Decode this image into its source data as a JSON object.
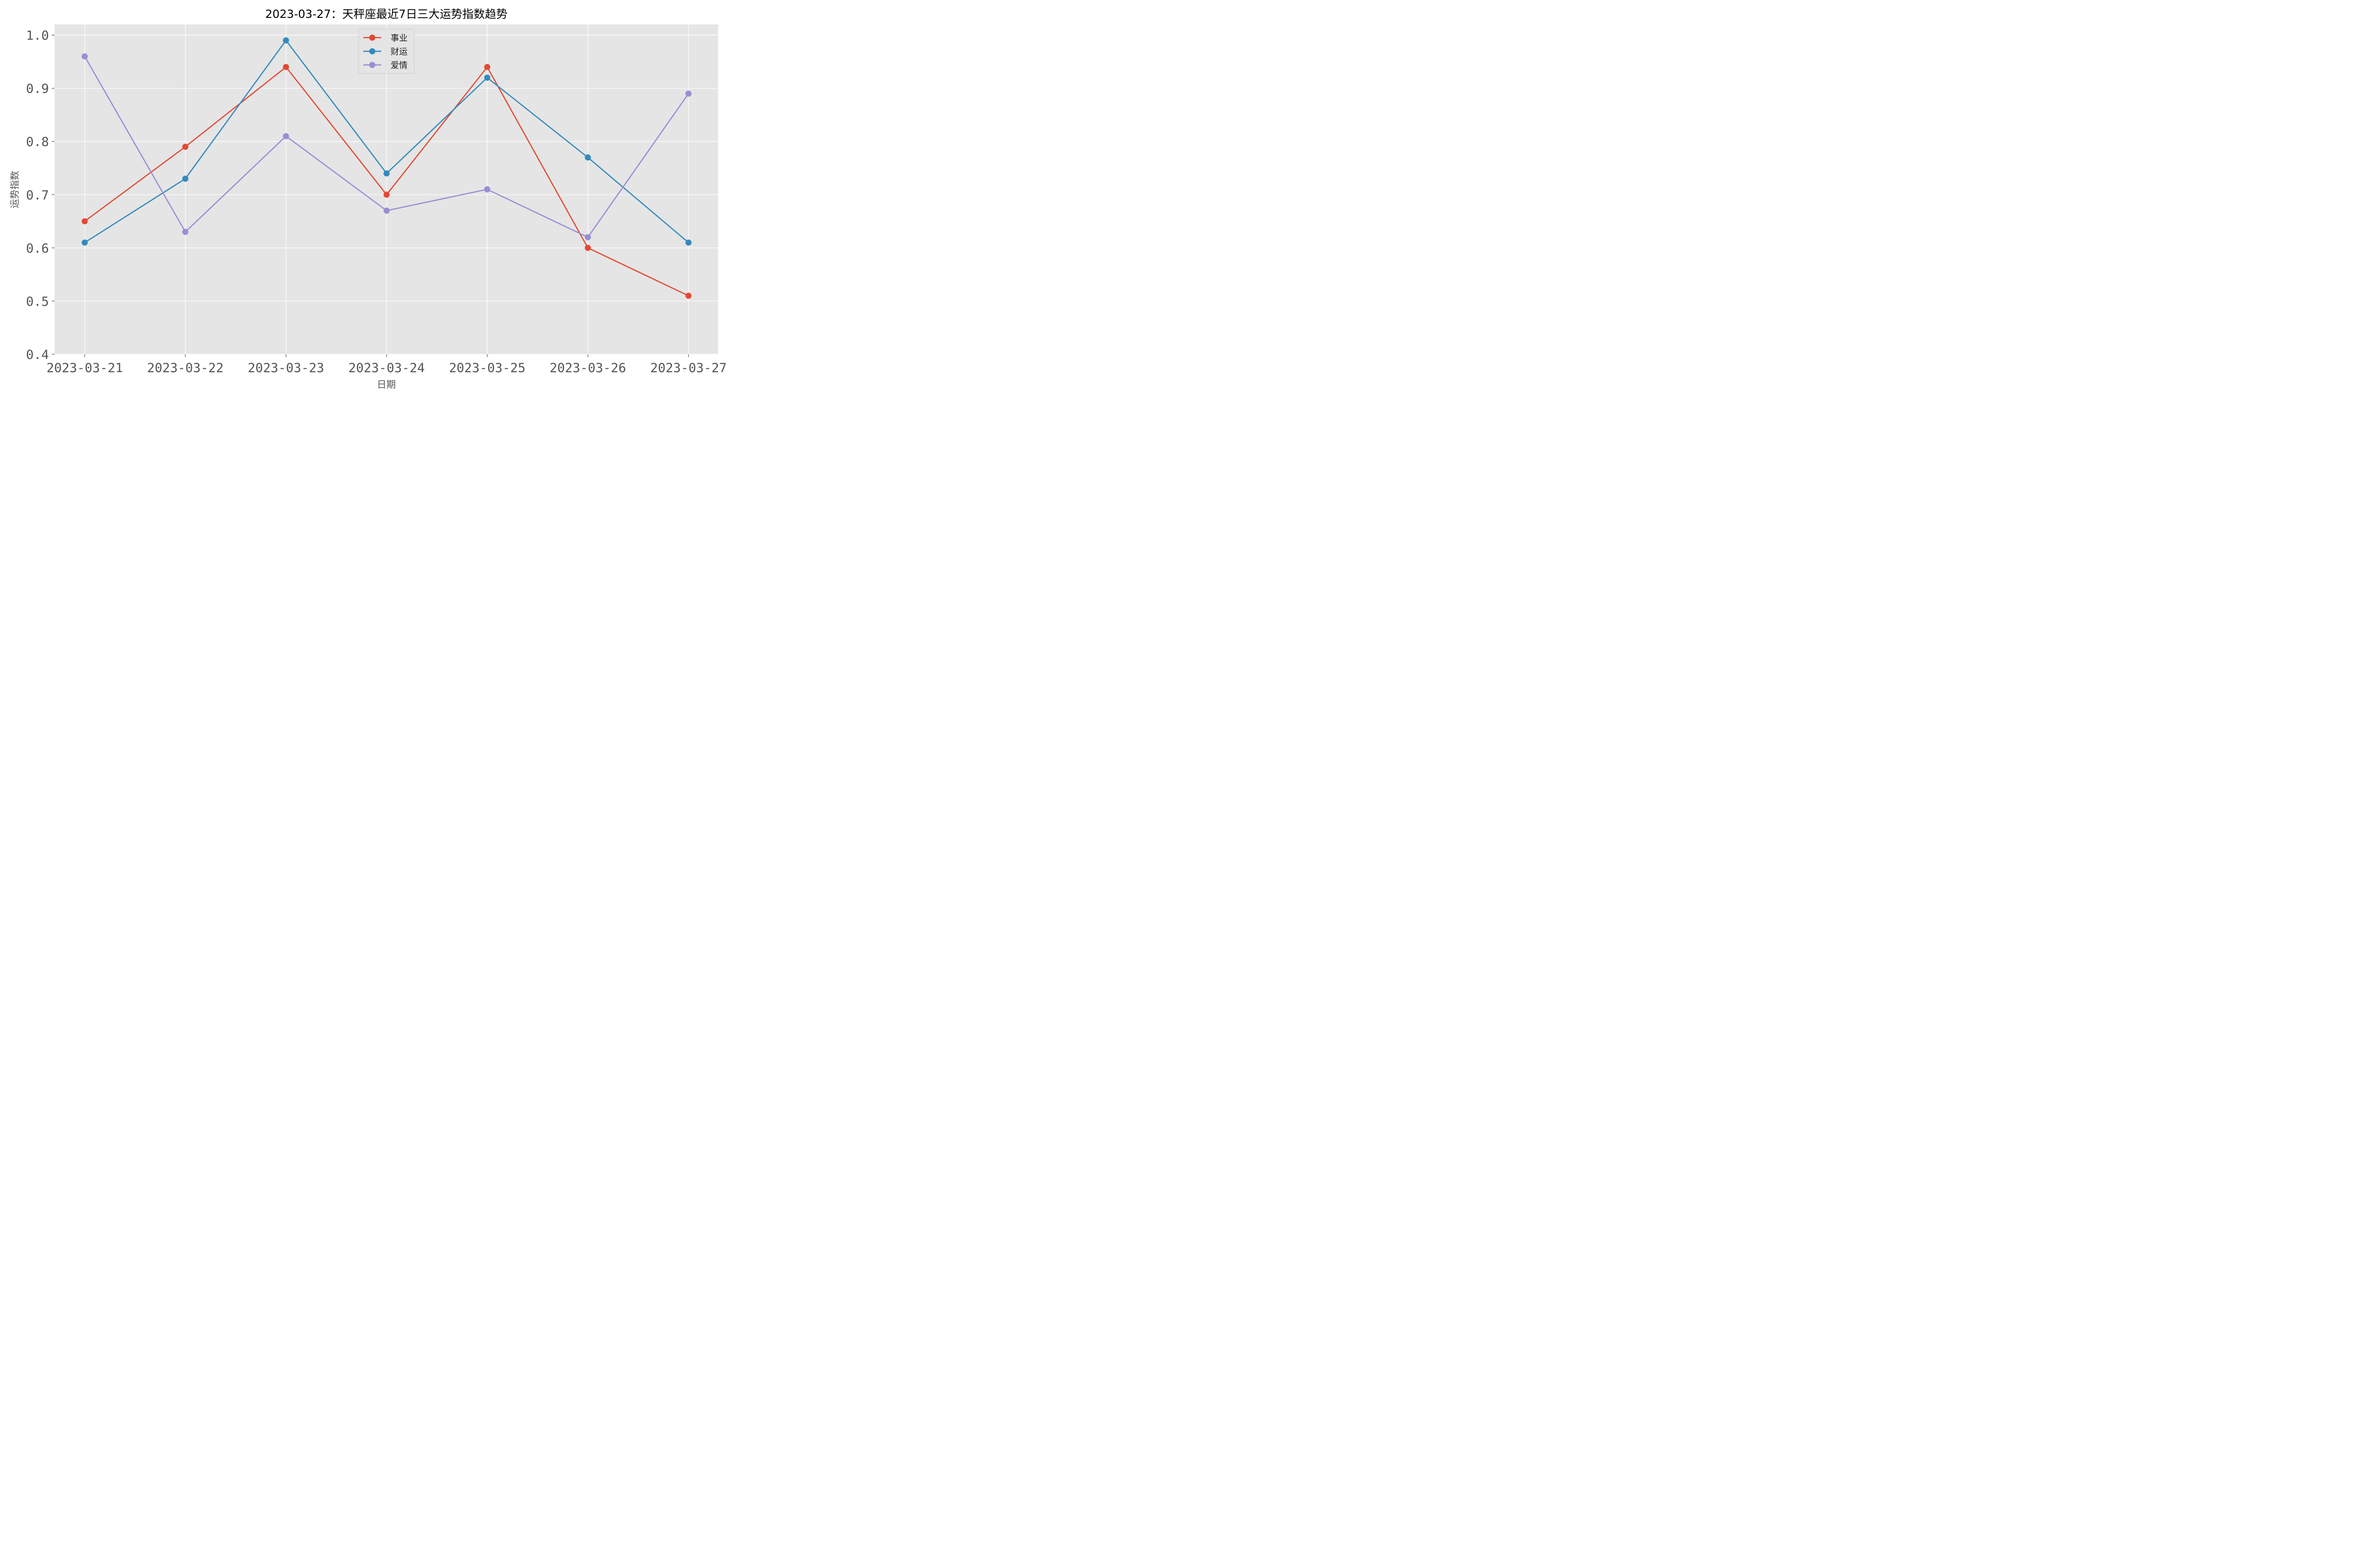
{
  "chart_data": {
    "type": "line",
    "title": "2023-03-27：天秤座最近7日三大运势指数趋势",
    "xlabel": "日期",
    "ylabel": "运势指数",
    "categories": [
      "2023-03-21",
      "2023-03-22",
      "2023-03-23",
      "2023-03-24",
      "2023-03-25",
      "2023-03-26",
      "2023-03-27"
    ],
    "ylim": [
      0.4,
      1.02
    ],
    "yticks": [
      "0.4",
      "0.5",
      "0.6",
      "0.7",
      "0.8",
      "0.9",
      "1.0"
    ],
    "grid": true,
    "legend_position": "top-center",
    "series": [
      {
        "name": "事业",
        "color": "#E24A33",
        "values": [
          0.65,
          0.79,
          0.94,
          0.7,
          0.94,
          0.6,
          0.51
        ]
      },
      {
        "name": "财运",
        "color": "#348ABD",
        "values": [
          0.61,
          0.73,
          0.99,
          0.74,
          0.92,
          0.77,
          0.61
        ]
      },
      {
        "name": "爱情",
        "color": "#988ED5",
        "values": [
          0.96,
          0.63,
          0.81,
          0.67,
          0.71,
          0.62,
          0.89
        ]
      }
    ]
  }
}
